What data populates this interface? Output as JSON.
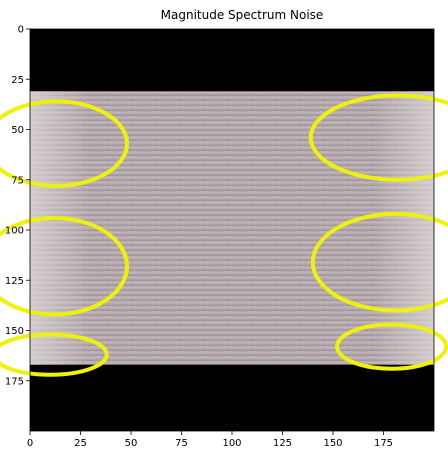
{
  "chart_data": {
    "type": "heatmap",
    "title": "Magnitude Spectrum Noise",
    "xlabel": "",
    "ylabel": "",
    "xlim": [
      0,
      200
    ],
    "ylim": [
      200,
      0
    ],
    "x_ticks": [
      0,
      25,
      50,
      75,
      100,
      125,
      150,
      175
    ],
    "y_ticks": [
      0,
      25,
      50,
      75,
      100,
      125,
      150,
      175
    ],
    "x_tick_labels": [
      "0",
      "25",
      "50",
      "75",
      "100",
      "125",
      "150",
      "175"
    ],
    "y_tick_labels": [
      "0",
      "25",
      "50",
      "75",
      "100",
      "125",
      "150",
      "175"
    ],
    "image_band_rows": [
      31,
      167
    ],
    "background_color": "#000000",
    "band_color": "#b4a9ad",
    "grid": false,
    "annotations": {
      "shape": "ellipse",
      "color": "#eef20a",
      "items": [
        {
          "cx": 13,
          "cy": 57,
          "rx": 35,
          "ry": 21
        },
        {
          "cx": 182,
          "cy": 54,
          "rx": 43,
          "ry": 21
        },
        {
          "cx": 12,
          "cy": 118,
          "rx": 36,
          "ry": 24
        },
        {
          "cx": 181,
          "cy": 116,
          "rx": 41,
          "ry": 24
        },
        {
          "cx": 10,
          "cy": 162,
          "rx": 28,
          "ry": 10
        },
        {
          "cx": 179,
          "cy": 158,
          "rx": 27,
          "ry": 11
        }
      ]
    }
  }
}
